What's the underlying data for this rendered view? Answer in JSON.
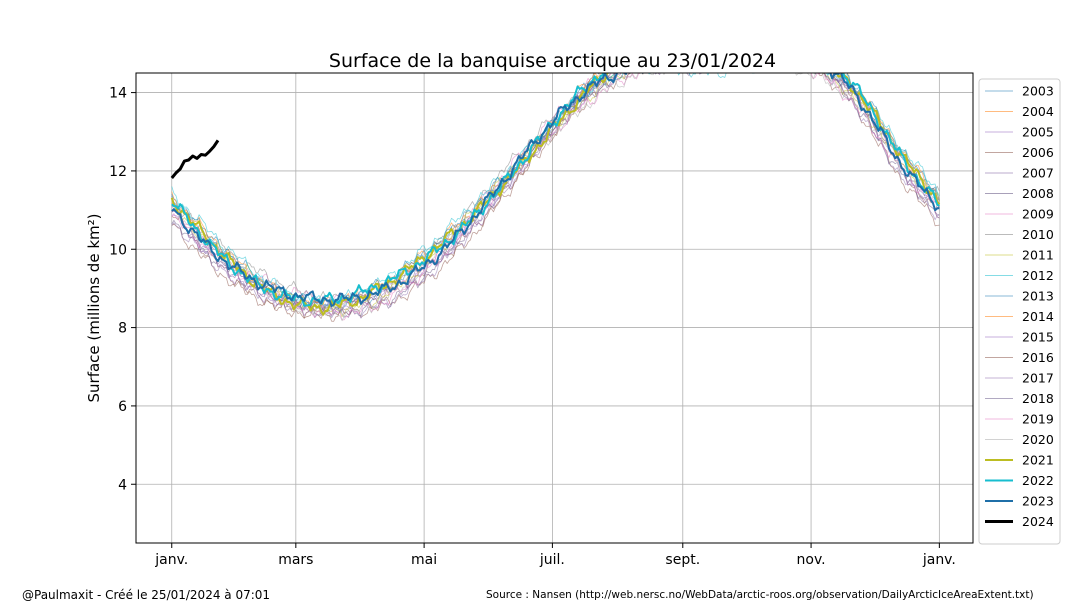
{
  "chart_data": {
    "type": "line",
    "title": "Surface de la banquise arctique au 23/01/2024",
    "xlabel": "",
    "ylabel": "Surface (millions de km²)",
    "x_ticks": [
      {
        "label": "janv.",
        "day": 1
      },
      {
        "label": "mars",
        "day": 60
      },
      {
        "label": "mai",
        "day": 121
      },
      {
        "label": "juil.",
        "day": 182
      },
      {
        "label": "sept.",
        "day": 244
      },
      {
        "label": "nov.",
        "day": 305
      },
      {
        "label": "janv.",
        "day": 366
      }
    ],
    "xlim": [
      -16,
      382
    ],
    "ylim": [
      2.5,
      14.5
    ],
    "y_ticks": [
      4,
      6,
      8,
      10,
      12,
      14
    ],
    "grid": true,
    "legend_position": "right",
    "series": [
      {
        "name": "2003",
        "color": "#1f77b4",
        "width": 0.8,
        "offset": 0.05,
        "min_shift": 0.4,
        "phase": 0.3
      },
      {
        "name": "2004",
        "color": "#ff7f0e",
        "width": 0.8,
        "offset": 0.1,
        "min_shift": 0.7,
        "phase": 1.1
      },
      {
        "name": "2005",
        "color": "#9467bd",
        "width": 0.8,
        "offset": -0.05,
        "min_shift": 0.3,
        "phase": 2.0
      },
      {
        "name": "2006",
        "color": "#8c564b",
        "width": 0.8,
        "offset": -0.25,
        "min_shift": 0.5,
        "phase": 2.7
      },
      {
        "name": "2007",
        "color": "#7f5f9f",
        "width": 0.8,
        "offset": -0.1,
        "min_shift": -0.6,
        "phase": 3.3
      },
      {
        "name": "2008",
        "color": "#5a4a7a",
        "width": 0.8,
        "offset": 0.0,
        "min_shift": 0.1,
        "phase": 4.0
      },
      {
        "name": "2009",
        "color": "#e377c2",
        "width": 0.8,
        "offset": 0.05,
        "min_shift": 0.6,
        "phase": 4.6
      },
      {
        "name": "2010",
        "color": "#7f7f7f",
        "width": 0.8,
        "offset": 0.15,
        "min_shift": 0.2,
        "phase": 5.2
      },
      {
        "name": "2011",
        "color": "#bcbd22",
        "width": 0.8,
        "offset": -0.05,
        "min_shift": -0.1,
        "phase": 5.9
      },
      {
        "name": "2012",
        "color": "#17becf",
        "width": 0.8,
        "offset": 0.2,
        "min_shift": -1.1,
        "phase": 0.8
      },
      {
        "name": "2013",
        "color": "#1f77b4",
        "width": 0.8,
        "offset": 0.1,
        "min_shift": 0.9,
        "phase": 1.6
      },
      {
        "name": "2014",
        "color": "#ff7f0e",
        "width": 0.8,
        "offset": 0.05,
        "min_shift": 0.9,
        "phase": 2.3
      },
      {
        "name": "2015",
        "color": "#9467bd",
        "width": 0.8,
        "offset": -0.2,
        "min_shift": 0.2,
        "phase": 3.0
      },
      {
        "name": "2016",
        "color": "#8c564b",
        "width": 0.8,
        "offset": -0.4,
        "min_shift": -0.2,
        "phase": 3.7
      },
      {
        "name": "2017",
        "color": "#8e6fae",
        "width": 0.8,
        "offset": -0.3,
        "min_shift": 0.3,
        "phase": 4.3
      },
      {
        "name": "2018",
        "color": "#6b5b8b",
        "width": 0.8,
        "offset": -0.25,
        "min_shift": 0.4,
        "phase": 4.9
      },
      {
        "name": "2019",
        "color": "#e377c2",
        "width": 0.8,
        "offset": -0.2,
        "min_shift": -0.4,
        "phase": 5.5
      },
      {
        "name": "2020",
        "color": "#aaaaaa",
        "width": 0.8,
        "offset": -0.15,
        "min_shift": -0.8,
        "phase": 6.1
      },
      {
        "name": "2021",
        "color": "#bcbd22",
        "width": 2.0,
        "offset": 0.0,
        "min_shift": 0.2,
        "phase": 1.4
      },
      {
        "name": "2022",
        "color": "#17becf",
        "width": 2.0,
        "offset": 0.05,
        "min_shift": 0.2,
        "phase": 2.6
      },
      {
        "name": "2023",
        "color": "#1f6fa8",
        "width": 2.0,
        "offset": 0.0,
        "min_shift": -0.4,
        "phase": 3.9
      },
      {
        "name": "2024",
        "color": "#000000",
        "width": 3.0,
        "values": [
          {
            "day": 1,
            "value": 11.82
          },
          {
            "day": 3,
            "value": 11.95
          },
          {
            "day": 5,
            "value": 12.05
          },
          {
            "day": 7,
            "value": 12.25
          },
          {
            "day": 9,
            "value": 12.28
          },
          {
            "day": 11,
            "value": 12.38
          },
          {
            "day": 13,
            "value": 12.32
          },
          {
            "day": 15,
            "value": 12.42
          },
          {
            "day": 17,
            "value": 12.4
          },
          {
            "day": 19,
            "value": 12.5
          },
          {
            "day": 21,
            "value": 12.62
          },
          {
            "day": 23,
            "value": 12.78
          }
        ]
      }
    ]
  },
  "footer": {
    "credit": "@Paulmaxit - Créé le 25/01/2024 à 07:01",
    "source": "Source : Nansen (http://web.nersc.no/WebData/arctic-roos.org/observation/DailyArcticIceAreaExtent.txt)"
  }
}
